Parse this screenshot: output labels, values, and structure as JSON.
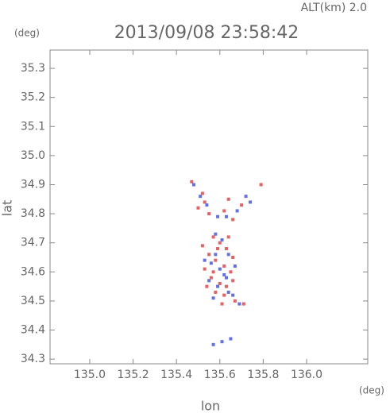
{
  "chart_data": {
    "type": "scatter",
    "title": "2013/09/08 23:58:42",
    "annotation": "ALT(km) 2.0",
    "y_unit": "(deg)",
    "x_unit": "(deg)",
    "xlabel": "lon",
    "ylabel": "lat",
    "xlim": [
      134.817,
      136.282
    ],
    "ylim": [
      34.284,
      35.363
    ],
    "xticks": [
      {
        "value": 135,
        "label": "135.0"
      },
      135.2,
      135.4,
      135.6,
      135.8,
      {
        "value": 136,
        "label": "136.0"
      }
    ],
    "yticks": [
      34.3,
      34.4,
      34.5,
      34.6,
      34.7,
      34.8,
      34.9,
      {
        "value": 35,
        "label": "35.0"
      },
      35.1,
      35.2,
      35.3
    ],
    "series": [
      {
        "color": "#e86060",
        "x": [
          135.47,
          135.52,
          135.53,
          135.5,
          135.55,
          135.62,
          135.64,
          135.66,
          135.7,
          135.79,
          135.57,
          135.6,
          135.63,
          135.55,
          135.58,
          135.62,
          135.65,
          135.53,
          135.56,
          135.6,
          135.63,
          135.58,
          135.62,
          135.66,
          135.54,
          135.61,
          135.67,
          135.71,
          135.57,
          135.66,
          135.59,
          135.52,
          135.64
        ],
        "values": [
          34.91,
          34.87,
          34.84,
          34.82,
          34.8,
          34.81,
          34.85,
          34.78,
          34.83,
          34.9,
          34.72,
          34.7,
          34.68,
          34.66,
          34.64,
          34.62,
          34.6,
          34.61,
          34.58,
          34.56,
          34.55,
          34.53,
          34.52,
          34.57,
          34.55,
          34.49,
          34.5,
          34.49,
          34.6,
          34.65,
          34.68,
          34.69,
          34.72
        ]
      },
      {
        "color": "#6070e8",
        "x": [
          135.48,
          135.51,
          135.54,
          135.59,
          135.63,
          135.68,
          135.72,
          135.74,
          135.58,
          135.61,
          135.64,
          135.56,
          135.6,
          135.63,
          135.55,
          135.59,
          135.64,
          135.57,
          135.62,
          135.67,
          135.53,
          135.69,
          135.66,
          135.58,
          135.65,
          135.61,
          135.57
        ],
        "values": [
          34.9,
          34.86,
          34.83,
          34.79,
          34.79,
          34.81,
          34.86,
          34.84,
          34.73,
          34.71,
          34.66,
          34.63,
          34.61,
          34.58,
          34.57,
          34.55,
          34.53,
          34.51,
          34.59,
          34.62,
          34.64,
          34.49,
          34.52,
          34.66,
          34.37,
          34.36,
          34.35
        ]
      }
    ]
  }
}
